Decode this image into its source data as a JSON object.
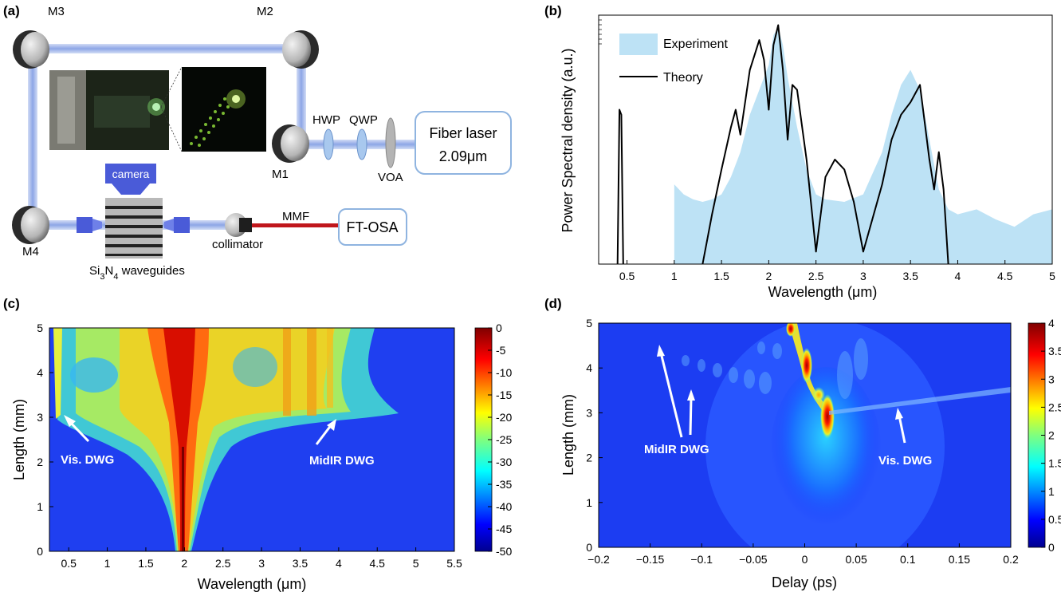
{
  "panels": {
    "a": {
      "label": "(a)",
      "mirrors": [
        "M1",
        "M2",
        "M3",
        "M4"
      ],
      "camera": "camera",
      "hwp": "HWP",
      "qwp": "QWP",
      "voa": "VOA",
      "laser_line1": "Fiber laser",
      "laser_line2": "2.09μm",
      "mmf": "MMF",
      "osa": "FT-OSA",
      "collimator": "collimator",
      "waveguides_pre": "Si",
      "waveguides_sub1": "3",
      "waveguides_mid": "N",
      "waveguides_sub2": "4",
      "waveguides_post": " waveguides"
    },
    "b": {
      "label": "(b)",
      "ylabel": "Power Spectral density (a.u.)",
      "xlabel": "Wavelength (μm)",
      "xticks": [
        "0.5",
        "1",
        "1.5",
        "2",
        "2.5",
        "3",
        "3.5",
        "4",
        "4.5",
        "5"
      ]
    },
    "c": {
      "label": "(c)",
      "ylabel": "Length (mm)",
      "xlabel": "Wavelength (μm)",
      "xticks": [
        "0.5",
        "1",
        "1.5",
        "2",
        "2.5",
        "3",
        "3.5",
        "4",
        "4.5",
        "5",
        "5.5"
      ],
      "yticks": [
        "0",
        "1",
        "2",
        "3",
        "4",
        "5"
      ],
      "cbar_ticks": [
        "0",
        "-5",
        "-10",
        "-15",
        "-20",
        "-25",
        "-30",
        "-35",
        "-40",
        "-45",
        "-50"
      ],
      "ann_vis": "Vis. DWG",
      "ann_midir": "MidIR DWG"
    },
    "d": {
      "label": "(d)",
      "ylabel": "Length (mm)",
      "xlabel": "Delay (ps)",
      "xticks": [
        "−0.2",
        "−0.15",
        "−0.1",
        "−0.05",
        "0",
        "0.05",
        "0.1",
        "0.15",
        "0.2"
      ],
      "yticks": [
        "0",
        "1",
        "2",
        "3",
        "4",
        "5"
      ],
      "cbar_ticks": [
        "4",
        "3.5",
        "3",
        "2.5",
        "2",
        "1.5",
        "1",
        "0.5",
        "0"
      ],
      "ann_midir": "MidIR DWG",
      "ann_vis": "Vis. DWG"
    }
  },
  "chart_data": [
    {
      "type": "area",
      "panel": "b",
      "xlabel": "Wavelength (μm)",
      "ylabel": "Power Spectral density (a.u.)",
      "xlim": [
        0.2,
        5.0
      ],
      "ylim": [
        0,
        1
      ],
      "legend_position": "top-left",
      "series": [
        {
          "name": "Experiment",
          "style": "filled",
          "color": "#bde2f5",
          "x": [
            1.0,
            1.1,
            1.2,
            1.3,
            1.4,
            1.5,
            1.6,
            1.7,
            1.8,
            1.9,
            2.0,
            2.05,
            2.1,
            2.15,
            2.2,
            2.3,
            2.4,
            2.5,
            2.6,
            2.8,
            3.0,
            3.2,
            3.3,
            3.4,
            3.5,
            3.6,
            3.7,
            3.8,
            3.9,
            4.0,
            4.2,
            4.4,
            4.6,
            4.8,
            5.0
          ],
          "y": [
            0.32,
            0.28,
            0.26,
            0.25,
            0.26,
            0.28,
            0.35,
            0.45,
            0.6,
            0.7,
            0.8,
            0.92,
            0.95,
            0.88,
            0.75,
            0.55,
            0.38,
            0.28,
            0.26,
            0.25,
            0.28,
            0.45,
            0.6,
            0.72,
            0.78,
            0.7,
            0.5,
            0.3,
            0.22,
            0.2,
            0.22,
            0.18,
            0.15,
            0.2,
            0.22
          ]
        },
        {
          "name": "Theory",
          "style": "line",
          "color": "#000000",
          "x": [
            0.4,
            0.42,
            0.44,
            0.46,
            1.3,
            1.4,
            1.5,
            1.6,
            1.65,
            1.7,
            1.8,
            1.9,
            1.95,
            2.0,
            2.05,
            2.1,
            2.15,
            2.2,
            2.25,
            2.3,
            2.4,
            2.5,
            2.6,
            2.7,
            2.8,
            2.9,
            3.0,
            3.2,
            3.3,
            3.4,
            3.5,
            3.6,
            3.7,
            3.75,
            3.8,
            3.85,
            3.9
          ],
          "y": [
            0.0,
            0.62,
            0.6,
            0.0,
            0.0,
            0.2,
            0.38,
            0.55,
            0.62,
            0.52,
            0.78,
            0.9,
            0.82,
            0.62,
            0.88,
            0.96,
            0.78,
            0.5,
            0.72,
            0.7,
            0.42,
            0.05,
            0.35,
            0.42,
            0.38,
            0.25,
            0.05,
            0.32,
            0.5,
            0.6,
            0.65,
            0.72,
            0.42,
            0.3,
            0.45,
            0.3,
            0.0
          ]
        }
      ]
    },
    {
      "type": "heatmap",
      "panel": "c",
      "xlabel": "Wavelength (μm)",
      "ylabel": "Length (mm)",
      "xlim": [
        0.25,
        5.5
      ],
      "ylim": [
        0,
        5
      ],
      "colorbar_range": [
        -50,
        0
      ],
      "colormap": "jet"
    },
    {
      "type": "heatmap",
      "panel": "d",
      "xlabel": "Delay (ps)",
      "ylabel": "Length (mm)",
      "xlim": [
        -0.2,
        0.2
      ],
      "ylim": [
        0,
        5
      ],
      "colorbar_range": [
        0,
        4
      ],
      "colormap": "jet"
    }
  ]
}
